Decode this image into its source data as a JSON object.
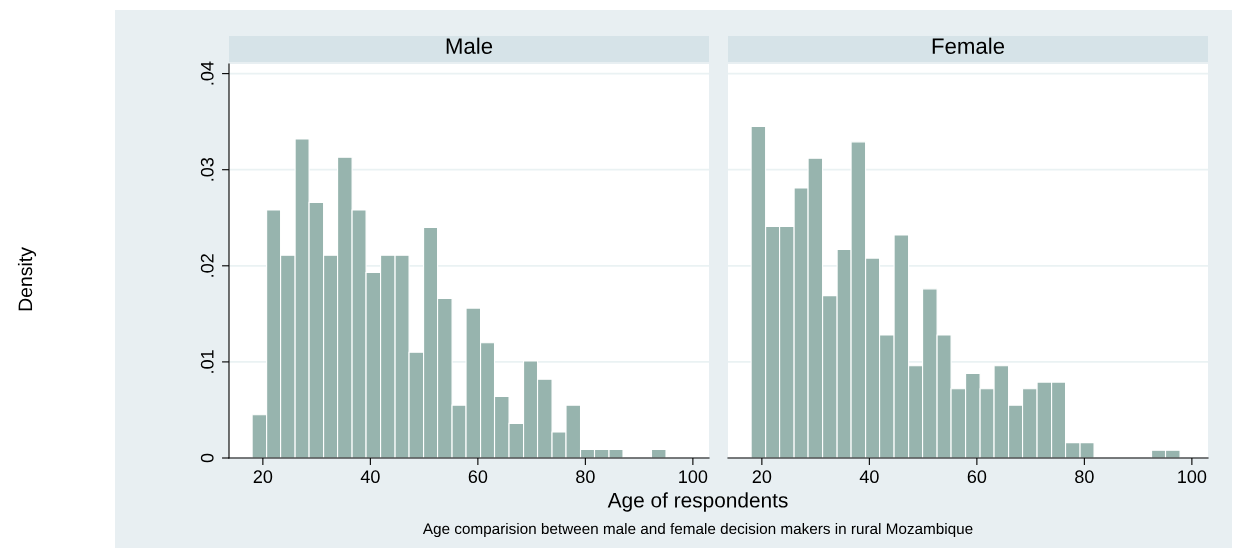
{
  "chart_data": [
    {
      "type": "histogram",
      "title": "Male",
      "ylabel": "Density",
      "xlabel": "Age of respondents",
      "color": "#97b4ae",
      "grid": "y",
      "bins": [
        18.0,
        20.7,
        23.3,
        26.0,
        28.6,
        31.3,
        33.9,
        36.6,
        39.2,
        41.9,
        44.6,
        47.2,
        49.9,
        52.5,
        55.2,
        57.8,
        60.5,
        63.1,
        65.8,
        68.5,
        71.1,
        73.8,
        76.4,
        79.1,
        81.7,
        84.4,
        87.0,
        92.3,
        95.0
      ],
      "values": [
        0.0045,
        0.0258,
        0.0211,
        0.0332,
        0.0266,
        0.0211,
        0.0313,
        0.0258,
        0.0193,
        0.0211,
        0.0211,
        0.011,
        0.024,
        0.0166,
        0.0055,
        0.0156,
        0.012,
        0.0064,
        0.0036,
        0.0101,
        0.0082,
        0.0027,
        0.0055,
        0.0009,
        0.0009,
        0.0009,
        0,
        0.0009
      ],
      "xlim": [
        13.7,
        103
      ],
      "xticks": [
        20,
        40,
        60,
        80,
        100
      ],
      "ylim": [
        0,
        0.041
      ],
      "yticks": [
        {
          "value": 0,
          "label": "0"
        },
        {
          "value": 0.01,
          "label": ".01"
        },
        {
          "value": 0.02,
          "label": ".02"
        },
        {
          "value": 0.03,
          "label": ".03"
        },
        {
          "value": 0.04,
          "label": ".04"
        }
      ],
      "annotations": [
        "Age comparision between male and female decision makers in rural Mozambique"
      ]
    },
    {
      "type": "histogram",
      "title": "Female",
      "color": "#97b4ae",
      "grid": "y",
      "tick_labels": "x",
      "bins": [
        18.0,
        20.7,
        23.3,
        26.0,
        28.6,
        31.3,
        34.0,
        36.6,
        39.3,
        41.9,
        44.6,
        47.3,
        49.9,
        52.6,
        55.2,
        57.9,
        60.6,
        63.2,
        65.9,
        68.5,
        71.2,
        73.9,
        76.5,
        79.2,
        81.8,
        92.5,
        95.1,
        97.8
      ],
      "values": [
        0.0345,
        0.0241,
        0.0241,
        0.0281,
        0.0312,
        0.0169,
        0.0217,
        0.0329,
        0.0208,
        0.0128,
        0.0232,
        0.0096,
        0.0176,
        0.0128,
        0.0072,
        0.0088,
        0.0072,
        0.0096,
        0.0055,
        0.0072,
        0.0079,
        0.0079,
        0.0016,
        0.0016,
        0,
        0.0008,
        0.0008
      ],
      "xlim": [
        13.7,
        103
      ],
      "xticks": [
        20,
        40,
        60,
        80,
        100
      ],
      "ylim": [
        0,
        0.041
      ],
      "yticks": [
        {
          "value": 0,
          "label": null
        },
        {
          "value": 0.01,
          "label": null
        },
        {
          "value": 0.02,
          "label": null
        },
        {
          "value": 0.03,
          "label": null
        },
        {
          "value": 0.04,
          "label": null
        }
      ]
    }
  ]
}
